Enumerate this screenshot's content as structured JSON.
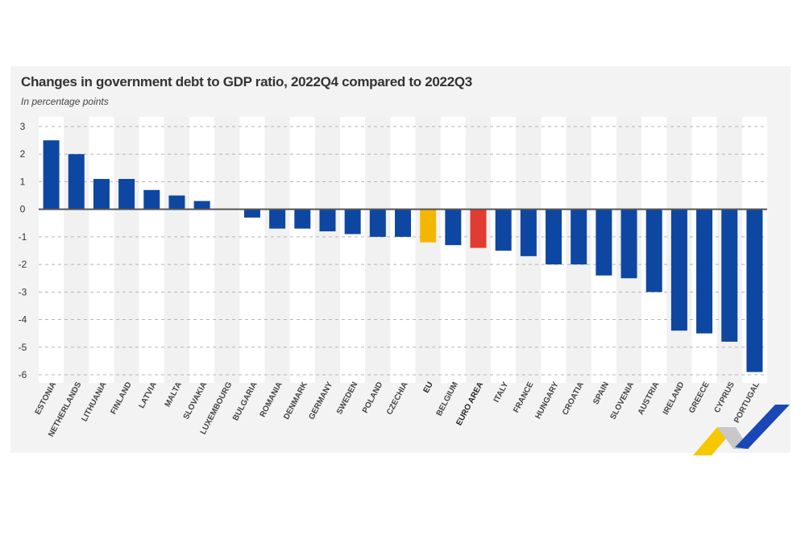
{
  "chart_data": {
    "type": "bar",
    "title": "Changes in government debt to GDP ratio, 2022Q4 compared to 2022Q3",
    "subtitle": "In percentage points",
    "xlabel": "",
    "ylabel": "",
    "ylim": [
      -6,
      3
    ],
    "yticks": [
      3,
      2,
      1,
      0,
      -1,
      -2,
      -3,
      -4,
      -5,
      -6
    ],
    "grid": true,
    "legend": "none",
    "categories": [
      "ESTONIA",
      "NETHERLANDS",
      "LITHUANIA",
      "FINLAND",
      "LATVIA",
      "MALTA",
      "SLOVAKIA",
      "LUXEMBOURG",
      "BULGARIA",
      "ROMANIA",
      "DENMARK",
      "GERMANY",
      "SWEDEN",
      "POLAND",
      "CZECHIA",
      "EU",
      "BELGIUM",
      "EURO AREA",
      "ITALY",
      "FRANCE",
      "HUNGARY",
      "CROATIA",
      "SPAIN",
      "SLOVENIA",
      "AUSTRIA",
      "IRELAND",
      "GREECE",
      "CYPRUS",
      "PORTUGAL"
    ],
    "values": [
      2.5,
      2.0,
      1.1,
      1.1,
      0.7,
      0.5,
      0.3,
      0.0,
      -0.3,
      -0.7,
      -0.7,
      -0.8,
      -0.9,
      -1.0,
      -1.0,
      -1.2,
      -1.3,
      -1.4,
      -1.5,
      -1.7,
      -2.0,
      -2.0,
      -2.4,
      -2.5,
      -3.0,
      -4.4,
      -4.5,
      -4.8,
      -5.9
    ],
    "highlight": {
      "EU": "#f2b705",
      "EURO AREA": "#e03c31"
    },
    "bold_categories": [
      "EU",
      "EURO AREA"
    ]
  },
  "colors": {
    "bar": "#0e47a1",
    "eu": "#f2b705",
    "euro_area": "#e03c31",
    "logo_yellow": "#f5c800",
    "logo_grey": "#c8c8c8",
    "logo_blue": "#1a47b8"
  },
  "logo": {
    "icon": "eurostat-chevron-logo-icon"
  }
}
